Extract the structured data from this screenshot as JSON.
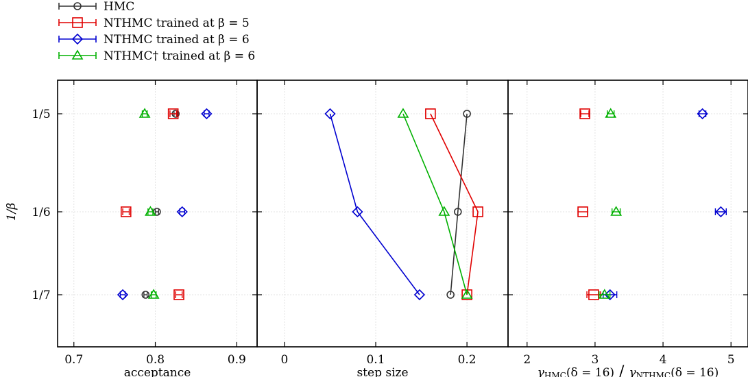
{
  "legend": {
    "items": [
      {
        "label": "HMC",
        "color": "#333333",
        "marker": "circle"
      },
      {
        "label": "NTHMC trained at β = 5",
        "color": "#e00000",
        "marker": "square"
      },
      {
        "label": "NTHMC trained at β = 6",
        "color": "#0000d0",
        "marker": "diamond"
      },
      {
        "label": "NTHMC† trained at β = 6",
        "color": "#00b000",
        "marker": "triangle"
      }
    ]
  },
  "chart_data": [
    {
      "type": "scatter",
      "panel": "acceptance",
      "xlabel": "acceptance",
      "ylabel": "1/β",
      "xlim": [
        0.68,
        0.925
      ],
      "xticks": [
        0.7,
        0.8,
        0.9
      ],
      "xtick_labels": [
        "0.7",
        "0.8",
        "0.9"
      ],
      "y_categories": [
        "1/5",
        "1/6",
        "1/7"
      ],
      "connect": false,
      "grid": true,
      "series": [
        {
          "name": "HMC",
          "values": [
            0.825,
            0.802,
            0.788
          ],
          "xerr": [
            0.002,
            0.002,
            0.002
          ]
        },
        {
          "name": "NTHMC trained at β = 5",
          "values": [
            0.822,
            0.764,
            0.829
          ],
          "xerr": [
            0.004,
            0.004,
            0.004
          ]
        },
        {
          "name": "NTHMC trained at β = 6",
          "values": [
            0.863,
            0.833,
            0.76
          ],
          "xerr": [
            0.003,
            0.003,
            0.003
          ]
        },
        {
          "name": "NTHMC† trained at β = 6",
          "values": [
            0.787,
            0.794,
            0.798
          ],
          "xerr": [
            0.003,
            0.003,
            0.003
          ]
        }
      ]
    },
    {
      "type": "line",
      "panel": "step-size",
      "xlabel": "step size",
      "xlim": [
        -0.03,
        0.245
      ],
      "xticks": [
        0,
        0.1,
        0.2
      ],
      "xtick_labels": [
        "0",
        "0.1",
        "0.2"
      ],
      "y_categories": [
        "1/5",
        "1/6",
        "1/7"
      ],
      "connect": true,
      "grid": true,
      "series": [
        {
          "name": "HMC",
          "values": [
            0.2,
            0.19,
            0.182
          ],
          "xerr": [
            0,
            0,
            0
          ]
        },
        {
          "name": "NTHMC trained at β = 5",
          "values": [
            0.16,
            0.212,
            0.2
          ],
          "xerr": [
            0,
            0,
            0
          ]
        },
        {
          "name": "NTHMC trained at β = 6",
          "values": [
            0.05,
            0.08,
            0.148
          ],
          "xerr": [
            0,
            0,
            0
          ]
        },
        {
          "name": "NTHMC† trained at β = 6",
          "values": [
            0.13,
            0.175,
            0.2
          ],
          "xerr": [
            0,
            0,
            0
          ]
        }
      ]
    },
    {
      "type": "scatter",
      "panel": "autocorrelation-ratio",
      "xlabel": "γHMC(δ = 16) / γNTHMC(δ = 16)",
      "xlabel_parts": {
        "g1": "γ",
        "s1": "HMC",
        "mid": "(δ = 16)",
        "g2": "γ",
        "s2": "NTHMC",
        "end": "(δ = 16)"
      },
      "xlim": [
        1.72,
        5.25
      ],
      "xticks": [
        2,
        3,
        4,
        5
      ],
      "xtick_labels": [
        "2",
        "3",
        "4",
        "5"
      ],
      "y_categories": [
        "1/5",
        "1/6",
        "1/7"
      ],
      "connect": false,
      "grid": true,
      "series": [
        {
          "name": "NTHMC trained at β = 5",
          "values": [
            2.85,
            2.82,
            2.98
          ],
          "xerr": [
            0.06,
            0.07,
            0.1
          ]
        },
        {
          "name": "NTHMC trained at β = 6",
          "values": [
            4.58,
            4.85,
            3.22
          ],
          "xerr": [
            0.05,
            0.08,
            0.1
          ]
        },
        {
          "name": "NTHMC† trained at β = 6",
          "values": [
            3.23,
            3.31,
            3.14
          ],
          "xerr": [
            0.05,
            0.06,
            0.08
          ]
        }
      ]
    }
  ]
}
